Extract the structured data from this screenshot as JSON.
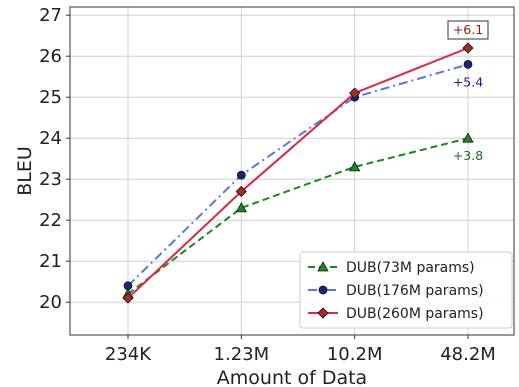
{
  "chart_data": {
    "type": "line",
    "categories": [
      "234K",
      "1.23M",
      "10.2M",
      "48.2M"
    ],
    "xlabel": "Amount of Data",
    "ylabel": "BLEU",
    "ylim": [
      19.2,
      27.2
    ],
    "yticks": [
      20,
      21,
      22,
      23,
      24,
      25,
      26,
      27
    ],
    "grid": true,
    "legend_position": "bottom-right",
    "series": [
      {
        "name": "DUB(73M params)",
        "values": [
          20.2,
          22.3,
          23.3,
          24.0
        ],
        "color": "#1a8a1a",
        "marker": "triangle",
        "dash": "dashed"
      },
      {
        "name": "DUB(176M params)",
        "values": [
          20.4,
          23.1,
          25.0,
          25.8
        ],
        "color": "#5b78d6",
        "marker": "circle",
        "dash": "dashdot"
      },
      {
        "name": "DUB(260M params)",
        "values": [
          20.1,
          22.7,
          25.1,
          26.2
        ],
        "color": "#d6294a",
        "marker": "diamond",
        "dash": "solid"
      }
    ],
    "annotations": [
      {
        "text": "+3.8",
        "series": 0,
        "color": "#1a6e1a",
        "boxed": false
      },
      {
        "text": "+5.4",
        "series": 1,
        "color": "#1a1a9a",
        "boxed": false
      },
      {
        "text": "+6.1",
        "series": 2,
        "color": "#a31515",
        "boxed": true
      }
    ]
  }
}
